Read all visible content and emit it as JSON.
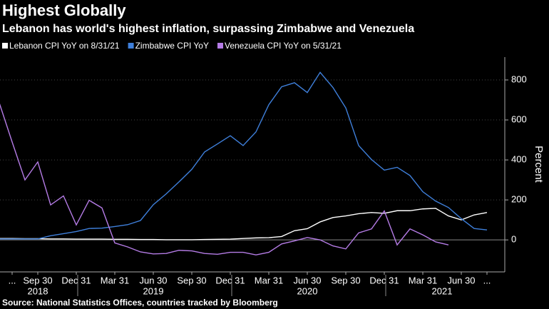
{
  "chart_data": {
    "type": "line",
    "title": "Highest Globally",
    "subtitle": "Lebanon has world's highest inflation, surpassing Zimbabwe and Venezuela",
    "y_label": "Percent",
    "source": "Source: National Statistics Offices, countries tracked by Bloomberg",
    "categories": [
      null,
      "...",
      null,
      "Sep 30",
      null,
      null,
      "Dec 31",
      null,
      null,
      "Mar 31",
      null,
      null,
      "Jun 30",
      null,
      null,
      "Sep 30",
      null,
      null,
      "Dec 31",
      null,
      null,
      "Mar 31",
      null,
      null,
      "Jun 30",
      null,
      null,
      "Sep 30",
      null,
      null,
      "Dec 31",
      null,
      null,
      "Mar 31",
      null,
      null,
      "Jun 30",
      null,
      "..."
    ],
    "years": [
      "2018",
      "2019",
      "2020",
      "2021"
    ],
    "series": [
      {
        "name": "Lebanon CPI YoY on 8/31/21",
        "color": "#ffffff",
        "values": [
          7,
          7,
          6,
          6,
          5,
          5,
          4,
          4,
          4,
          3,
          3,
          2,
          2,
          1,
          1,
          1,
          2,
          3,
          4,
          7,
          10,
          11,
          17,
          46,
          56,
          90,
          112,
          120,
          131,
          137,
          133,
          146,
          146,
          155,
          158,
          120,
          100,
          125,
          137
        ]
      },
      {
        "name": "Zimbabwe CPI YoY",
        "color": "#3f80dc",
        "values": [
          5,
          5,
          5,
          5,
          21,
          31,
          42,
          57,
          59,
          67,
          76,
          97,
          176,
          230,
          290,
          353,
          440,
          480,
          521,
          472,
          540,
          676,
          766,
          786,
          737,
          838,
          762,
          660,
          472,
          402,
          349,
          363,
          322,
          241,
          194,
          162,
          106,
          57,
          50
        ]
      },
      {
        "name": "Venezuela CPI YoY on 5/31/21",
        "color": "#b57ce6",
        "values": [
          685,
          490,
          300,
          390,
          175,
          220,
          75,
          198,
          160,
          -15,
          -35,
          -60,
          -70,
          -68,
          -52,
          -55,
          -68,
          -72,
          -62,
          -62,
          -75,
          -62,
          -20,
          -5,
          12,
          0,
          -30,
          -45,
          35,
          55,
          145,
          -25,
          55,
          25,
          -10,
          -25,
          null,
          null,
          null
        ]
      }
    ],
    "ylim": [
      -160,
      900
    ],
    "yticks": [
      0,
      200,
      400,
      600,
      800
    ],
    "y_axis_side": "right",
    "grid": true
  }
}
